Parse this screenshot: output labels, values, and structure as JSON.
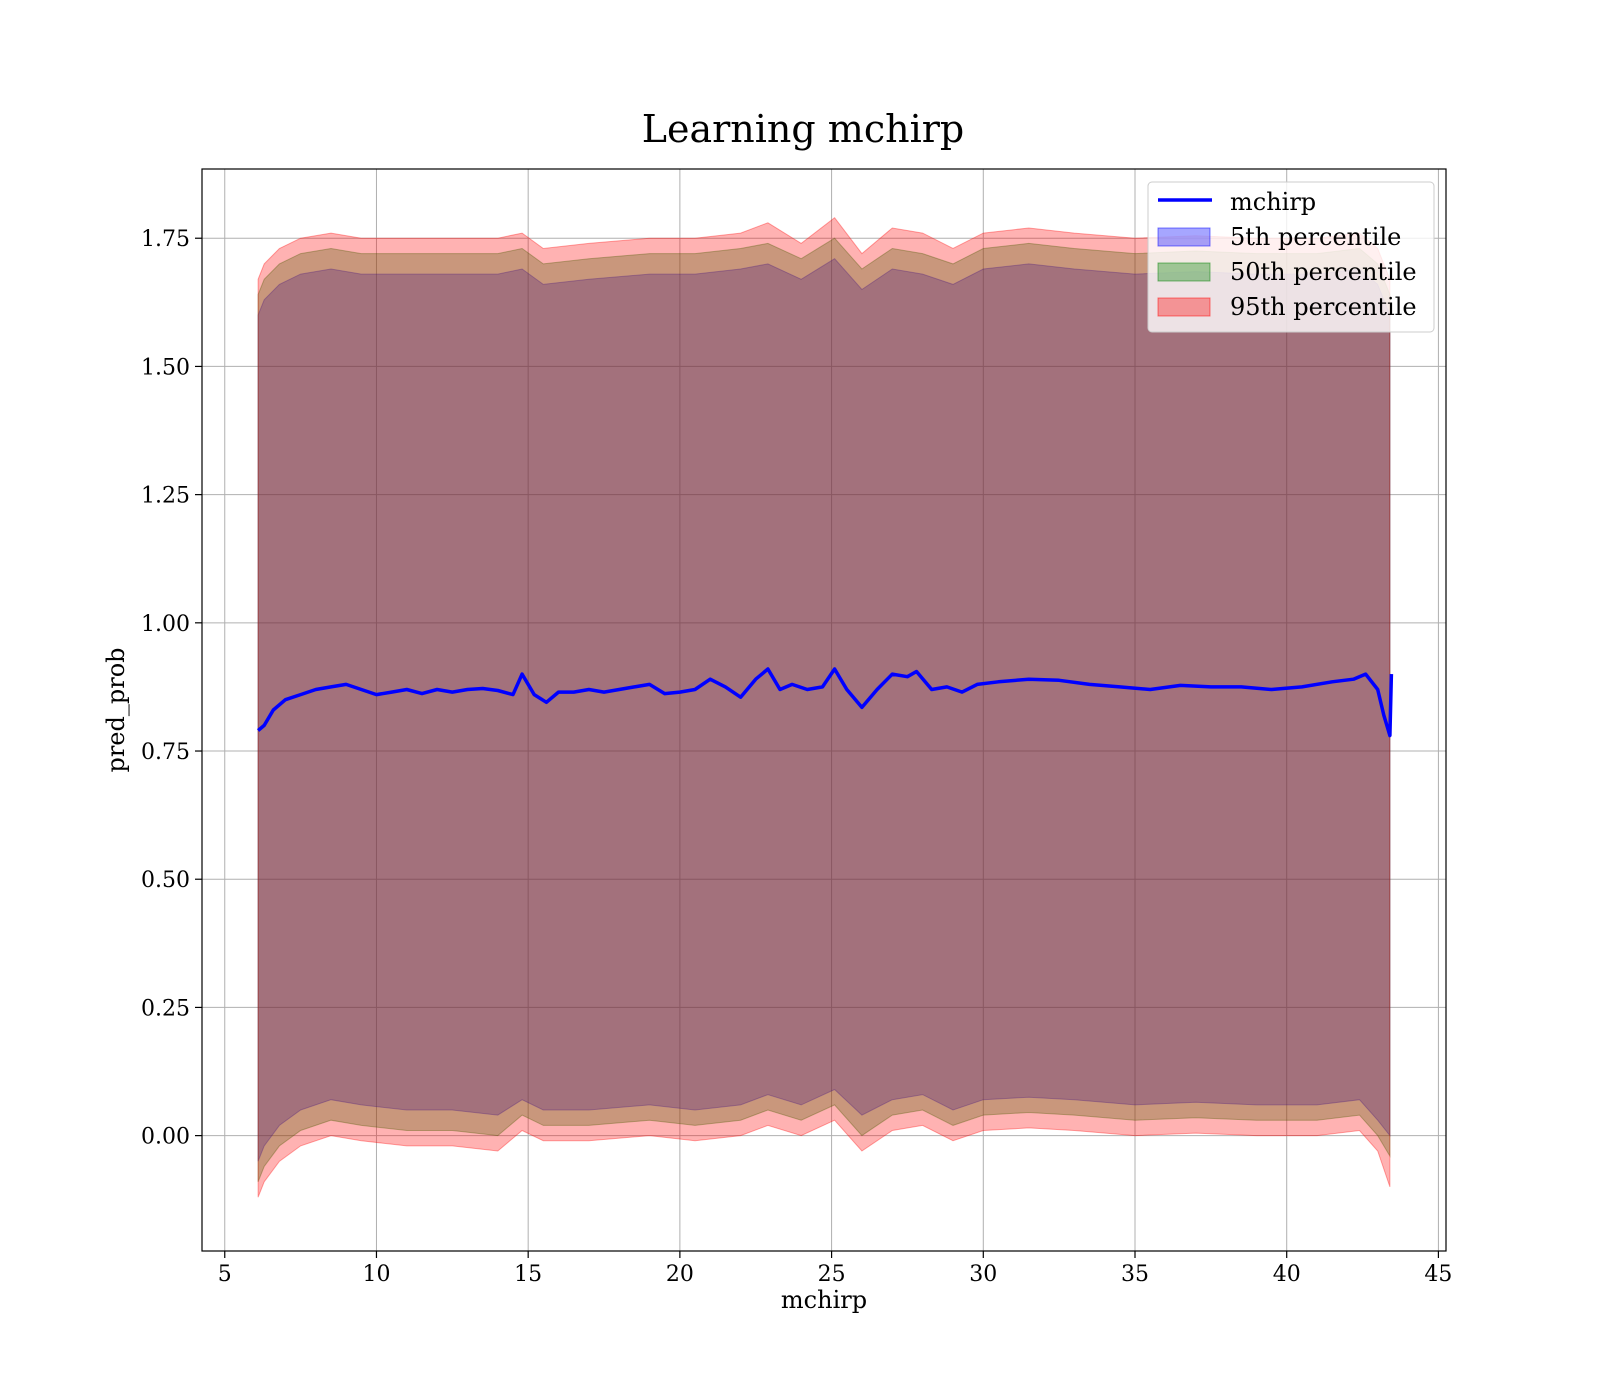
{
  "chart_data": {
    "type": "line",
    "title": "Learning mchirp",
    "xlabel": "mchirp",
    "ylabel": "pred_prob",
    "xlim": [
      4.25,
      45.25
    ],
    "ylim": [
      -0.225,
      1.885
    ],
    "xticks": [
      5,
      10,
      15,
      20,
      25,
      30,
      35,
      40,
      45
    ],
    "yticks": [
      0.0,
      0.25,
      0.5,
      0.75,
      1.0,
      1.25,
      1.5,
      1.75
    ],
    "ytick_labels": [
      "0.00",
      "0.25",
      "0.50",
      "0.75",
      "1.00",
      "1.25",
      "1.50",
      "1.75"
    ],
    "grid": true,
    "legend_position": "top-right",
    "colors": {
      "line": "#0000ff",
      "band_5th": "#0000ff",
      "band_50th": "#008000",
      "band_95th": "#ff0000"
    },
    "series": [
      {
        "name": "mchirp",
        "kind": "line",
        "x": [
          6.1,
          6.3,
          6.6,
          7.0,
          7.5,
          8.0,
          8.5,
          9.0,
          9.5,
          10.0,
          10.5,
          11.0,
          11.5,
          12.0,
          12.5,
          13.0,
          13.5,
          14.0,
          14.5,
          14.8,
          15.2,
          15.6,
          16.0,
          16.5,
          17.0,
          17.5,
          18.0,
          18.5,
          19.0,
          19.5,
          20.0,
          20.5,
          21.0,
          21.5,
          22.0,
          22.5,
          22.9,
          23.3,
          23.7,
          24.2,
          24.7,
          25.1,
          25.5,
          26.0,
          26.5,
          27.0,
          27.5,
          27.8,
          28.3,
          28.8,
          29.3,
          29.8,
          30.5,
          31.5,
          32.5,
          33.5,
          34.5,
          35.5,
          36.5,
          37.5,
          38.5,
          39.5,
          40.5,
          41.5,
          42.2,
          42.6,
          43.0,
          43.2,
          43.4,
          43.45
        ],
        "y": [
          0.79,
          0.8,
          0.83,
          0.85,
          0.86,
          0.87,
          0.875,
          0.88,
          0.87,
          0.86,
          0.865,
          0.87,
          0.862,
          0.87,
          0.865,
          0.87,
          0.872,
          0.868,
          0.86,
          0.9,
          0.86,
          0.845,
          0.865,
          0.865,
          0.87,
          0.865,
          0.87,
          0.875,
          0.88,
          0.862,
          0.865,
          0.87,
          0.89,
          0.875,
          0.855,
          0.89,
          0.91,
          0.87,
          0.88,
          0.87,
          0.875,
          0.91,
          0.87,
          0.835,
          0.87,
          0.9,
          0.895,
          0.905,
          0.87,
          0.875,
          0.865,
          0.88,
          0.885,
          0.89,
          0.888,
          0.88,
          0.875,
          0.87,
          0.878,
          0.875,
          0.875,
          0.87,
          0.875,
          0.885,
          0.89,
          0.9,
          0.87,
          0.82,
          0.78,
          0.9
        ]
      },
      {
        "name": "5th percentile",
        "kind": "band",
        "x": [
          6.1,
          6.3,
          6.8,
          7.5,
          8.5,
          9.5,
          11.0,
          12.5,
          14.0,
          14.8,
          15.5,
          17.0,
          19.0,
          20.5,
          22.0,
          22.9,
          24.0,
          25.1,
          26.0,
          27.0,
          28.0,
          29.0,
          30.0,
          31.5,
          33.0,
          35.0,
          37.0,
          39.0,
          41.0,
          42.4,
          43.0,
          43.4
        ],
        "lower": [
          -0.05,
          -0.02,
          0.02,
          0.05,
          0.07,
          0.06,
          0.05,
          0.05,
          0.04,
          0.07,
          0.05,
          0.05,
          0.06,
          0.05,
          0.06,
          0.08,
          0.06,
          0.09,
          0.04,
          0.07,
          0.08,
          0.05,
          0.07,
          0.075,
          0.07,
          0.06,
          0.065,
          0.06,
          0.06,
          0.07,
          0.03,
          0.0
        ],
        "upper": [
          1.6,
          1.63,
          1.66,
          1.68,
          1.69,
          1.68,
          1.68,
          1.68,
          1.68,
          1.69,
          1.66,
          1.67,
          1.68,
          1.68,
          1.69,
          1.7,
          1.67,
          1.71,
          1.65,
          1.69,
          1.68,
          1.66,
          1.69,
          1.7,
          1.69,
          1.68,
          1.685,
          1.68,
          1.68,
          1.69,
          1.66,
          1.6
        ]
      },
      {
        "name": "50th percentile",
        "kind": "band",
        "x": [
          6.1,
          6.3,
          6.8,
          7.5,
          8.5,
          9.5,
          11.0,
          12.5,
          14.0,
          14.8,
          15.5,
          17.0,
          19.0,
          20.5,
          22.0,
          22.9,
          24.0,
          25.1,
          26.0,
          27.0,
          28.0,
          29.0,
          30.0,
          31.5,
          33.0,
          35.0,
          37.0,
          39.0,
          41.0,
          42.4,
          43.0,
          43.4
        ],
        "lower": [
          -0.09,
          -0.06,
          -0.02,
          0.01,
          0.03,
          0.02,
          0.01,
          0.01,
          0.0,
          0.04,
          0.02,
          0.02,
          0.03,
          0.02,
          0.03,
          0.05,
          0.03,
          0.06,
          0.0,
          0.04,
          0.05,
          0.02,
          0.04,
          0.045,
          0.04,
          0.03,
          0.035,
          0.03,
          0.03,
          0.04,
          0.0,
          -0.04
        ],
        "upper": [
          1.64,
          1.67,
          1.7,
          1.72,
          1.73,
          1.72,
          1.72,
          1.72,
          1.72,
          1.73,
          1.7,
          1.71,
          1.72,
          1.72,
          1.73,
          1.74,
          1.71,
          1.75,
          1.69,
          1.73,
          1.72,
          1.7,
          1.73,
          1.74,
          1.73,
          1.72,
          1.725,
          1.72,
          1.72,
          1.73,
          1.7,
          1.64
        ]
      },
      {
        "name": "95th percentile",
        "kind": "band",
        "x": [
          6.1,
          6.3,
          6.8,
          7.5,
          8.5,
          9.5,
          11.0,
          12.5,
          14.0,
          14.8,
          15.5,
          17.0,
          19.0,
          20.5,
          22.0,
          22.9,
          24.0,
          25.1,
          26.0,
          27.0,
          28.0,
          29.0,
          30.0,
          31.5,
          33.0,
          35.0,
          37.0,
          39.0,
          41.0,
          42.4,
          43.0,
          43.4
        ],
        "lower": [
          -0.12,
          -0.09,
          -0.05,
          -0.02,
          0.0,
          -0.01,
          -0.02,
          -0.02,
          -0.03,
          0.01,
          -0.01,
          -0.01,
          0.0,
          -0.01,
          0.0,
          0.02,
          0.0,
          0.03,
          -0.03,
          0.01,
          0.02,
          -0.01,
          0.01,
          0.015,
          0.01,
          0.0,
          0.005,
          0.0,
          0.0,
          0.01,
          -0.03,
          -0.1
        ],
        "upper": [
          1.67,
          1.7,
          1.73,
          1.75,
          1.76,
          1.75,
          1.75,
          1.75,
          1.75,
          1.76,
          1.73,
          1.74,
          1.75,
          1.75,
          1.76,
          1.78,
          1.74,
          1.79,
          1.72,
          1.77,
          1.76,
          1.73,
          1.76,
          1.77,
          1.76,
          1.75,
          1.755,
          1.75,
          1.75,
          1.76,
          1.73,
          1.67
        ]
      }
    ]
  }
}
